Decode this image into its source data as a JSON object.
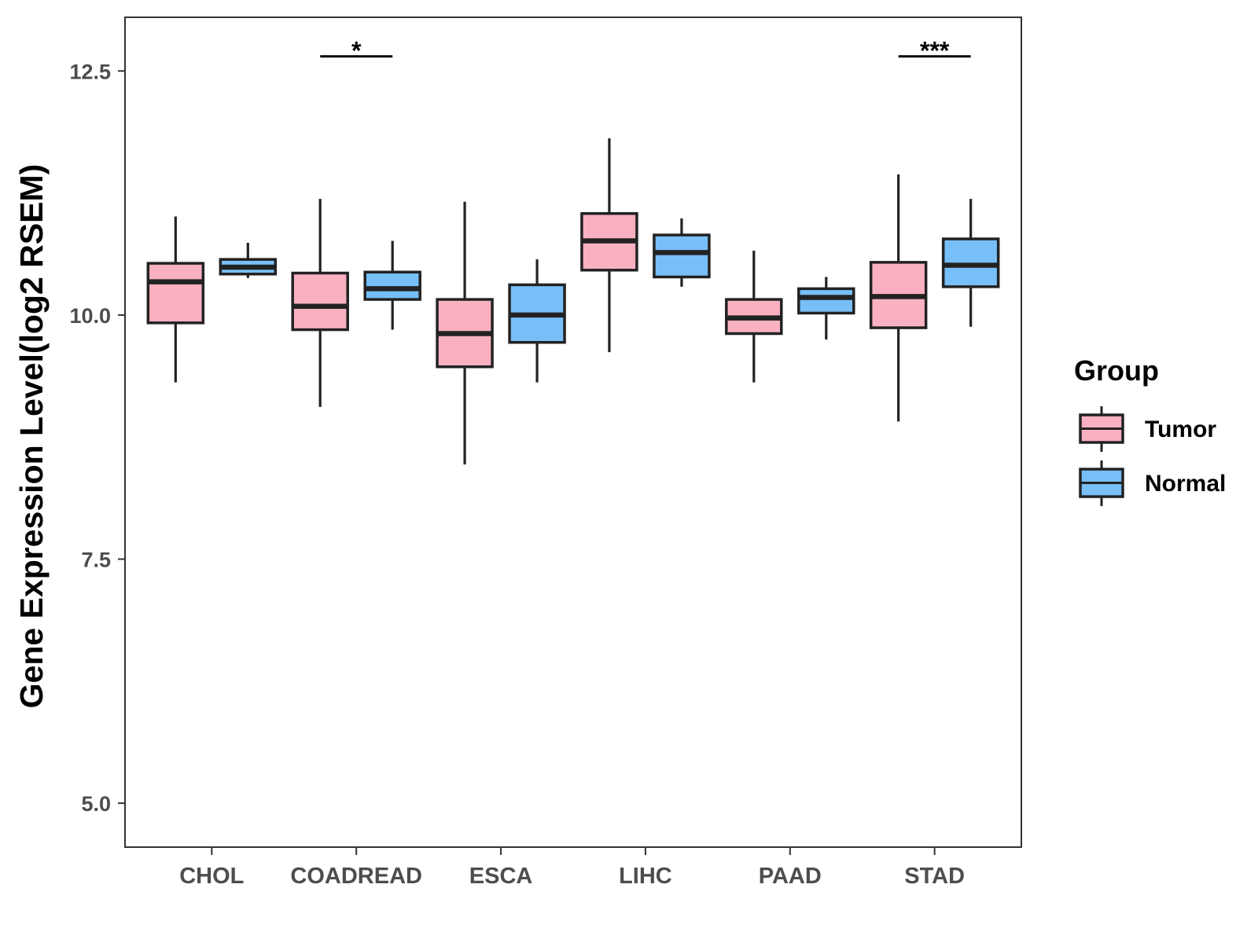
{
  "chart_data": {
    "type": "boxplot",
    "title": "",
    "xlabel": "",
    "ylabel": "Gene Expression Level(log2 RSEM)",
    "ylim": [
      4.55,
      13.05
    ],
    "yticks": [
      5.0,
      7.5,
      10.0,
      12.5
    ],
    "ytick_labels": [
      "5.0",
      "7.5",
      "10.0",
      "12.5"
    ],
    "categories": [
      "CHOL",
      "COADREAD",
      "ESCA",
      "LIHC",
      "PAAD",
      "STAD"
    ],
    "legend": {
      "title": "Group",
      "position": "right",
      "entries": [
        "Tumor",
        "Normal"
      ]
    },
    "series": [
      {
        "name": "Tumor",
        "color": "#f9b1c2",
        "boxes": [
          {
            "category": "CHOL",
            "min": 9.31,
            "q1": 9.92,
            "median": 10.34,
            "q3": 10.53,
            "max": 11.01
          },
          {
            "category": "COADREAD",
            "min": 9.06,
            "q1": 9.85,
            "median": 10.09,
            "q3": 10.43,
            "max": 11.19
          },
          {
            "category": "ESCA",
            "min": 8.47,
            "q1": 9.47,
            "median": 9.81,
            "q3": 10.16,
            "max": 11.16
          },
          {
            "category": "LIHC",
            "min": 9.62,
            "q1": 10.46,
            "median": 10.76,
            "q3": 11.04,
            "max": 11.81
          },
          {
            "category": "PAAD",
            "min": 9.31,
            "q1": 9.81,
            "median": 9.97,
            "q3": 10.16,
            "max": 10.66
          },
          {
            "category": "STAD",
            "min": 8.91,
            "q1": 9.87,
            "median": 10.19,
            "q3": 10.54,
            "max": 11.44
          }
        ]
      },
      {
        "name": "Normal",
        "color": "#78bff8",
        "boxes": [
          {
            "category": "CHOL",
            "min": 10.38,
            "q1": 10.42,
            "median": 10.49,
            "q3": 10.57,
            "max": 10.74
          },
          {
            "category": "COADREAD",
            "min": 9.85,
            "q1": 10.16,
            "median": 10.27,
            "q3": 10.44,
            "max": 10.76
          },
          {
            "category": "ESCA",
            "min": 9.31,
            "q1": 9.72,
            "median": 10.0,
            "q3": 10.31,
            "max": 10.57
          },
          {
            "category": "LIHC",
            "min": 10.29,
            "q1": 10.39,
            "median": 10.64,
            "q3": 10.82,
            "max": 10.99
          },
          {
            "category": "PAAD",
            "min": 9.75,
            "q1": 10.02,
            "median": 10.18,
            "q3": 10.27,
            "max": 10.39
          },
          {
            "category": "STAD",
            "min": 9.88,
            "q1": 10.29,
            "median": 10.51,
            "q3": 10.78,
            "max": 11.19
          }
        ]
      }
    ],
    "significance": [
      {
        "category": "COADREAD",
        "label": "*",
        "y": 12.65
      },
      {
        "category": "STAD",
        "label": "***",
        "y": 12.65
      }
    ]
  }
}
